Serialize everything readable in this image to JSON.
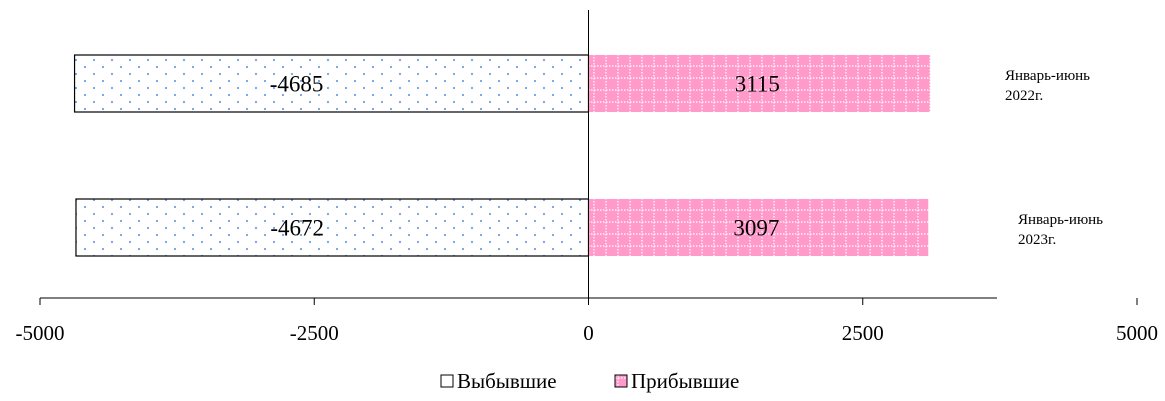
{
  "chart_data": {
    "type": "bar",
    "orientation": "horizontal",
    "categories": [
      [
        "Январь-июнь",
        "2022г."
      ],
      [
        "Январь-июнь",
        "2023г."
      ]
    ],
    "series": [
      {
        "name": "Выбывшие",
        "values": [
          -4685,
          -4672
        ],
        "pattern": "dots"
      },
      {
        "name": "Прибывшие",
        "values": [
          3115,
          3097
        ],
        "pattern": "grid"
      }
    ],
    "xlim": [
      -5000,
      5000
    ],
    "xticks": [
      -5000,
      -2500,
      0,
      2500,
      5000
    ],
    "grid": false,
    "legend": "bottom",
    "title": "",
    "xlabel": "",
    "ylabel": ""
  },
  "colors": {
    "departed_fill": "#ffffff",
    "departed_dots": "#6f9fe8",
    "arrived_fill": "#ff9acb",
    "arrived_grid": "#ffffff",
    "axis": "#000000"
  }
}
